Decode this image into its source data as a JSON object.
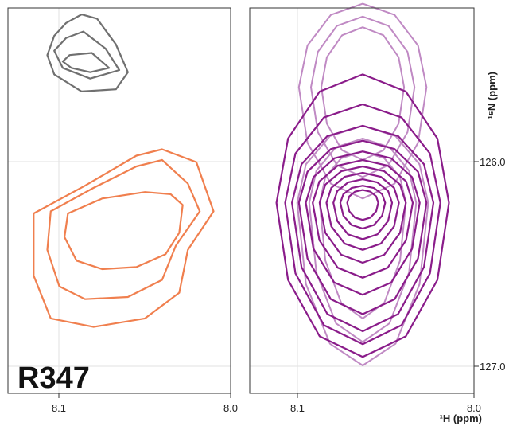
{
  "chart_data": [
    {
      "type": "contour",
      "panel": "left",
      "residue_label": "R347",
      "xlim": [
        8.13,
        8.0
      ],
      "ylim": [
        127.05,
        125.25
      ],
      "x_ticks": [
        {
          "value": 8.1,
          "label": "8.1"
        },
        {
          "value": 8.0,
          "label": "8.0"
        }
      ],
      "y_gridlines": [
        126.0,
        127.0
      ],
      "colors": {
        "gray": "#707070",
        "orange": "#f07f4e"
      },
      "contours": [
        {
          "group": "gray",
          "points": [
            [
              8.096,
              125.32
            ],
            [
              8.087,
              125.28
            ],
            [
              8.078,
              125.3
            ],
            [
              8.067,
              125.42
            ],
            [
              8.06,
              125.55
            ],
            [
              8.067,
              125.63
            ],
            [
              8.087,
              125.64
            ],
            [
              8.103,
              125.56
            ],
            [
              8.107,
              125.47
            ],
            [
              8.103,
              125.38
            ]
          ]
        },
        {
          "group": "gray",
          "points": [
            [
              8.096,
              125.39
            ],
            [
              8.086,
              125.36
            ],
            [
              8.073,
              125.44
            ],
            [
              8.065,
              125.54
            ],
            [
              8.082,
              125.58
            ],
            [
              8.098,
              125.53
            ],
            [
              8.103,
              125.45
            ]
          ]
        },
        {
          "group": "gray",
          "points": [
            [
              8.094,
              125.47
            ],
            [
              8.081,
              125.46
            ],
            [
              8.071,
              125.53
            ],
            [
              8.082,
              125.55
            ],
            [
              8.093,
              125.53
            ],
            [
              8.098,
              125.5
            ]
          ]
        },
        {
          "group": "orange",
          "points": [
            [
              8.115,
              126.21
            ],
            [
              8.085,
              126.08
            ],
            [
              8.055,
              125.94
            ],
            [
              8.04,
              125.91
            ],
            [
              8.02,
              125.97
            ],
            [
              8.01,
              126.2
            ],
            [
              8.025,
              126.38
            ],
            [
              8.03,
              126.58
            ],
            [
              8.05,
              126.7
            ],
            [
              8.08,
              126.74
            ],
            [
              8.105,
              126.7
            ],
            [
              8.115,
              126.5
            ]
          ]
        },
        {
          "group": "orange",
          "points": [
            [
              8.105,
              126.2
            ],
            [
              8.08,
              126.09
            ],
            [
              8.055,
              125.99
            ],
            [
              8.04,
              125.96
            ],
            [
              8.025,
              126.07
            ],
            [
              8.018,
              126.2
            ],
            [
              8.032,
              126.36
            ],
            [
              8.04,
              126.52
            ],
            [
              8.06,
              126.6
            ],
            [
              8.085,
              126.61
            ],
            [
              8.1,
              126.55
            ],
            [
              8.107,
              126.38
            ]
          ]
        },
        {
          "group": "orange",
          "points": [
            [
              8.095,
              126.21
            ],
            [
              8.075,
              126.14
            ],
            [
              8.05,
              126.11
            ],
            [
              8.035,
              126.12
            ],
            [
              8.028,
              126.17
            ],
            [
              8.03,
              126.3
            ],
            [
              8.038,
              126.4
            ],
            [
              8.055,
              126.46
            ],
            [
              8.075,
              126.47
            ],
            [
              8.09,
              126.43
            ],
            [
              8.097,
              126.32
            ]
          ]
        }
      ]
    },
    {
      "type": "contour",
      "panel": "right",
      "xlim": [
        8.13,
        8.0
      ],
      "ylim": [
        127.05,
        125.25
      ],
      "x_ticks": [
        {
          "value": 8.1,
          "label": "8.1"
        },
        {
          "value": 8.0,
          "label": "8.0"
        }
      ],
      "y_ticks": [
        {
          "value": 126.0,
          "label": "126.0"
        },
        {
          "value": 127.0,
          "label": "127.0"
        }
      ],
      "x_label": "¹H (ppm)",
      "y_label": "¹⁵N (ppm)",
      "colors": {
        "dark_purple": "#8a1c8a",
        "light_purple": "#c08ac4"
      },
      "contours": [
        {
          "group": "light_purple",
          "center": [
            8.0645,
            125.62
          ],
          "rx": 0.037,
          "ry_top": 0.39,
          "ry_bot": 0.52
        },
        {
          "group": "light_purple",
          "center": [
            8.0645,
            125.62
          ],
          "rx": 0.03,
          "ry_top": 0.33,
          "ry_bot": 0.42
        },
        {
          "group": "light_purple",
          "center": [
            8.0645,
            125.62
          ],
          "rx": 0.024,
          "ry_top": 0.28,
          "ry_bot": 0.34
        },
        {
          "group": "light_purple",
          "center": [
            8.0645,
            126.16
          ],
          "rx": 0.038,
          "ry_top": 0.36,
          "ry_bot": 0.76
        },
        {
          "group": "light_purple",
          "center": [
            8.0645,
            126.16
          ],
          "rx": 0.031,
          "ry_top": 0.3,
          "ry_bot": 0.65
        },
        {
          "group": "light_purple",
          "center": [
            8.0645,
            126.16
          ],
          "rx": 0.025,
          "ry_top": 0.24,
          "ry_bot": 0.54
        },
        {
          "group": "dark_purple",
          "center": [
            8.0645,
            126.16
          ],
          "rx": 0.05,
          "ry_top": 0.6,
          "ry_bot": 0.72
        },
        {
          "group": "dark_purple",
          "center": [
            8.0645,
            126.16
          ],
          "rx": 0.045,
          "ry_top": 0.46,
          "ry_bot": 0.66
        },
        {
          "group": "dark_purple",
          "center": [
            8.0645,
            126.16
          ],
          "rx": 0.041,
          "ry_top": 0.36,
          "ry_bot": 0.6
        },
        {
          "group": "dark_purple",
          "center": [
            8.0645,
            126.16
          ],
          "rx": 0.037,
          "ry_top": 0.29,
          "ry_bot": 0.52
        },
        {
          "group": "dark_purple",
          "center": [
            8.0645,
            126.16
          ],
          "rx": 0.033,
          "ry_top": 0.24,
          "ry_bot": 0.43
        },
        {
          "group": "dark_purple",
          "center": [
            8.0645,
            126.16
          ],
          "rx": 0.029,
          "ry_top": 0.2,
          "ry_bot": 0.35
        },
        {
          "group": "dark_purple",
          "center": [
            8.0645,
            126.16
          ],
          "rx": 0.025,
          "ry_top": 0.17,
          "ry_bot": 0.28
        },
        {
          "group": "dark_purple",
          "center": [
            8.0645,
            126.16
          ],
          "rx": 0.021,
          "ry_top": 0.14,
          "ry_bot": 0.22
        },
        {
          "group": "dark_purple",
          "center": [
            8.0645,
            126.16
          ],
          "rx": 0.017,
          "ry_top": 0.11,
          "ry_bot": 0.17
        },
        {
          "group": "dark_purple",
          "center": [
            8.0645,
            126.16
          ],
          "rx": 0.013,
          "ry_top": 0.08,
          "ry_bot": 0.12
        },
        {
          "group": "dark_purple",
          "center": [
            8.0645,
            126.16
          ],
          "rx": 0.009,
          "ry_top": 0.06,
          "ry_bot": 0.08
        }
      ]
    }
  ]
}
